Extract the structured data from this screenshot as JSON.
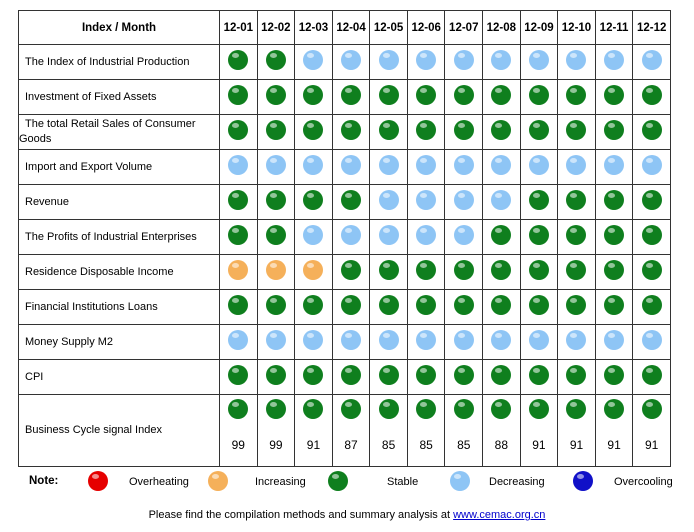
{
  "colors": {
    "Overheating": "#e60000",
    "Increasing": "#f5b05a",
    "Stable": "#0f7f1e",
    "Decreasing": "#8ec5f5",
    "Overcooling": "#1010c8"
  },
  "chart_data": {
    "type": "table",
    "header": {
      "index_label": "Index / Month"
    },
    "months": [
      "12-01",
      "12-02",
      "12-03",
      "12-04",
      "12-05",
      "12-06",
      "12-07",
      "12-08",
      "12-09",
      "12-10",
      "12-11",
      "12-12"
    ],
    "rows": [
      {
        "label": "The Index of Industrial Production",
        "signals": [
          "Stable",
          "Stable",
          "Decreasing",
          "Decreasing",
          "Decreasing",
          "Decreasing",
          "Decreasing",
          "Decreasing",
          "Decreasing",
          "Decreasing",
          "Decreasing",
          "Decreasing"
        ]
      },
      {
        "label": "Investment of Fixed Assets",
        "signals": [
          "Stable",
          "Stable",
          "Stable",
          "Stable",
          "Stable",
          "Stable",
          "Stable",
          "Stable",
          "Stable",
          "Stable",
          "Stable",
          "Stable"
        ]
      },
      {
        "label": "The total Retail Sales of Consumer Goods",
        "signals": [
          "Stable",
          "Stable",
          "Stable",
          "Stable",
          "Stable",
          "Stable",
          "Stable",
          "Stable",
          "Stable",
          "Stable",
          "Stable",
          "Stable"
        ]
      },
      {
        "label": "Import and Export Volume",
        "signals": [
          "Decreasing",
          "Decreasing",
          "Decreasing",
          "Decreasing",
          "Decreasing",
          "Decreasing",
          "Decreasing",
          "Decreasing",
          "Decreasing",
          "Decreasing",
          "Decreasing",
          "Decreasing"
        ]
      },
      {
        "label": "Revenue",
        "signals": [
          "Stable",
          "Stable",
          "Stable",
          "Stable",
          "Decreasing",
          "Decreasing",
          "Decreasing",
          "Decreasing",
          "Stable",
          "Stable",
          "Stable",
          "Stable"
        ]
      },
      {
        "label": "The Profits of Industrial Enterprises",
        "signals": [
          "Stable",
          "Stable",
          "Decreasing",
          "Decreasing",
          "Decreasing",
          "Decreasing",
          "Decreasing",
          "Stable",
          "Stable",
          "Stable",
          "Stable",
          "Stable"
        ]
      },
      {
        "label": "Residence Disposable Income",
        "signals": [
          "Increasing",
          "Increasing",
          "Increasing",
          "Stable",
          "Stable",
          "Stable",
          "Stable",
          "Stable",
          "Stable",
          "Stable",
          "Stable",
          "Stable"
        ]
      },
      {
        "label": "Financial Institutions Loans",
        "signals": [
          "Stable",
          "Stable",
          "Stable",
          "Stable",
          "Stable",
          "Stable",
          "Stable",
          "Stable",
          "Stable",
          "Stable",
          "Stable",
          "Stable"
        ]
      },
      {
        "label": "Money Supply M2",
        "signals": [
          "Decreasing",
          "Decreasing",
          "Decreasing",
          "Decreasing",
          "Decreasing",
          "Decreasing",
          "Decreasing",
          "Decreasing",
          "Decreasing",
          "Decreasing",
          "Decreasing",
          "Decreasing"
        ]
      },
      {
        "label": "CPI",
        "signals": [
          "Stable",
          "Stable",
          "Stable",
          "Stable",
          "Stable",
          "Stable",
          "Stable",
          "Stable",
          "Stable",
          "Stable",
          "Stable",
          "Stable"
        ]
      }
    ],
    "business_cycle": {
      "label": "Business Cycle signal Index",
      "signals": [
        "Stable",
        "Stable",
        "Stable",
        "Stable",
        "Stable",
        "Stable",
        "Stable",
        "Stable",
        "Stable",
        "Stable",
        "Stable",
        "Stable"
      ],
      "values": [
        99,
        99,
        91,
        87,
        85,
        85,
        85,
        88,
        91,
        91,
        91,
        91
      ]
    }
  },
  "legend": {
    "note_label": "Note:",
    "items": [
      {
        "label": "Overheating",
        "color_key": "Overheating"
      },
      {
        "label": "Increasing",
        "color_key": "Increasing"
      },
      {
        "label": "Stable",
        "color_key": "Stable"
      },
      {
        "label": "Decreasing",
        "color_key": "Decreasing"
      },
      {
        "label": "Overcooling",
        "color_key": "Overcooling"
      }
    ]
  },
  "footer": {
    "text": "Please find the compilation methods and summary analysis at ",
    "link": "www.cemac.org.cn"
  }
}
